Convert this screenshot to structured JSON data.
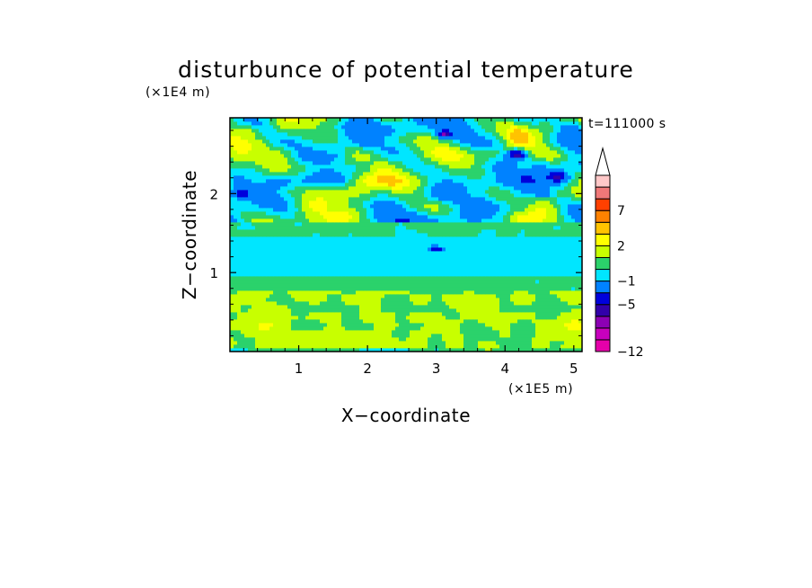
{
  "chart_data": {
    "type": "heatmap",
    "title": "disturbunce of potential temperature",
    "xlabel": "X−coordinate",
    "ylabel": "Z−coordinate",
    "x_unit": "(×1E5 m)",
    "y_unit": "(×1E4 m)",
    "time_label": "t=111000 s",
    "xlim": [
      0,
      5.12
    ],
    "ylim": [
      0,
      2.96
    ],
    "xticks": [
      {
        "value": 1,
        "label": "1"
      },
      {
        "value": 2,
        "label": "2"
      },
      {
        "value": 3,
        "label": "3"
      },
      {
        "value": 4,
        "label": "4"
      },
      {
        "value": 5,
        "label": "5"
      }
    ],
    "yticks": [
      {
        "value": 1,
        "label": "1"
      },
      {
        "value": 2,
        "label": "2"
      }
    ],
    "colorbar": {
      "levels": [
        -12,
        -10,
        -8,
        -6,
        -5,
        -3,
        -1,
        0,
        1,
        2,
        3,
        5,
        7,
        9,
        11
      ],
      "colors": [
        "#e600aa",
        "#c800be",
        "#8c00b4",
        "#3200aa",
        "#0000dc",
        "#0082ff",
        "#00e6ff",
        "#2bd26b",
        "#c8ff00",
        "#ffff00",
        "#ffc300",
        "#ff8200",
        "#ff4000",
        "#f07878",
        "#ffc8c8"
      ],
      "labels": [
        {
          "value": -12,
          "label": "−12"
        },
        {
          "value": -5,
          "label": "−5"
        },
        {
          "value": -1,
          "label": "−1"
        },
        {
          "value": 2,
          "label": "2"
        },
        {
          "value": 7,
          "label": "7"
        }
      ],
      "extend": "max"
    },
    "field_description": "Near-surface layer (z < 0.8) mostly 0 to 2 with patches 2 to 3; green band around z = 0.8-0.95; cyan band (-1 to 0) around z = 1.05-1.4 with small dark-blue spot near x = 3.0, z = 1.3; upper layer (z > 1.5) alternating wave crests 2 to 5 (orange) and troughs -1 to -3, with dark-blue cells near (0.15, 2.0), (3.15, 2.75), (4.2, 2.5), (4.75, 2.2)."
  }
}
